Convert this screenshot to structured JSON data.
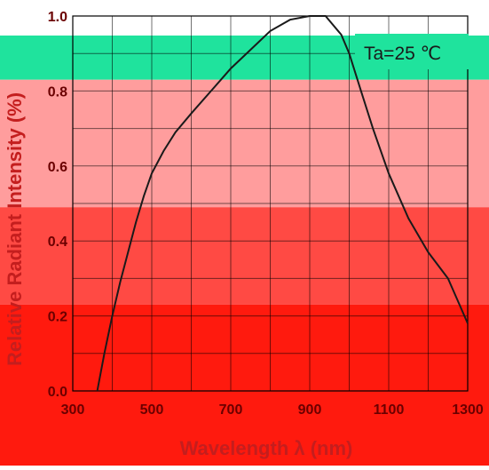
{
  "chart_data": {
    "type": "line",
    "title": "",
    "xlabel": "Wavelength λ (nm)",
    "ylabel": "Relative Radiant Intensity (%)",
    "annotation": "Ta=25 ℃",
    "xlim": [
      300,
      1300
    ],
    "ylim": [
      0,
      1.0
    ],
    "x_ticks": [
      "300",
      "500",
      "700",
      "900",
      "1100",
      "1300"
    ],
    "y_ticks": [
      "0.0",
      "0.2",
      "0.4",
      "0.6",
      "0.8",
      "1.0"
    ],
    "grid": true,
    "x_grid_step": 100,
    "y_grid_step": 0.1,
    "colors": {
      "curve": "#1a1a1a",
      "grid": "#000000",
      "axis_text": "#6a0000",
      "axis_label": "#c41e1e",
      "band_top": "#1fe39d",
      "band_upper": "#ff9d9d",
      "band_mid": "#ff4a44",
      "band_low": "#ff1a0e"
    },
    "bands": [
      {
        "from": 0.83,
        "to": 1.0,
        "color": "#1fe39d"
      },
      {
        "from": 0.49,
        "to": 0.83,
        "color": "#ff9d9d"
      },
      {
        "from": 0.23,
        "to": 0.49,
        "color": "#ff4a44"
      },
      {
        "from": -0.12,
        "to": 0.23,
        "color": "#ff1a0e"
      }
    ],
    "series": [
      {
        "points": [
          [
            362,
            0.0
          ],
          [
            380,
            0.1
          ],
          [
            400,
            0.2
          ],
          [
            420,
            0.29
          ],
          [
            440,
            0.37
          ],
          [
            460,
            0.45
          ],
          [
            480,
            0.52
          ],
          [
            500,
            0.58
          ],
          [
            530,
            0.64
          ],
          [
            560,
            0.69
          ],
          [
            600,
            0.74
          ],
          [
            650,
            0.8
          ],
          [
            700,
            0.86
          ],
          [
            750,
            0.91
          ],
          [
            800,
            0.96
          ],
          [
            850,
            0.99
          ],
          [
            900,
            1.0
          ],
          [
            940,
            1.0
          ],
          [
            980,
            0.95
          ],
          [
            1000,
            0.9
          ],
          [
            1030,
            0.8
          ],
          [
            1060,
            0.7
          ],
          [
            1080,
            0.64
          ],
          [
            1100,
            0.58
          ],
          [
            1150,
            0.46
          ],
          [
            1200,
            0.37
          ],
          [
            1250,
            0.3
          ],
          [
            1300,
            0.18
          ]
        ]
      }
    ]
  }
}
